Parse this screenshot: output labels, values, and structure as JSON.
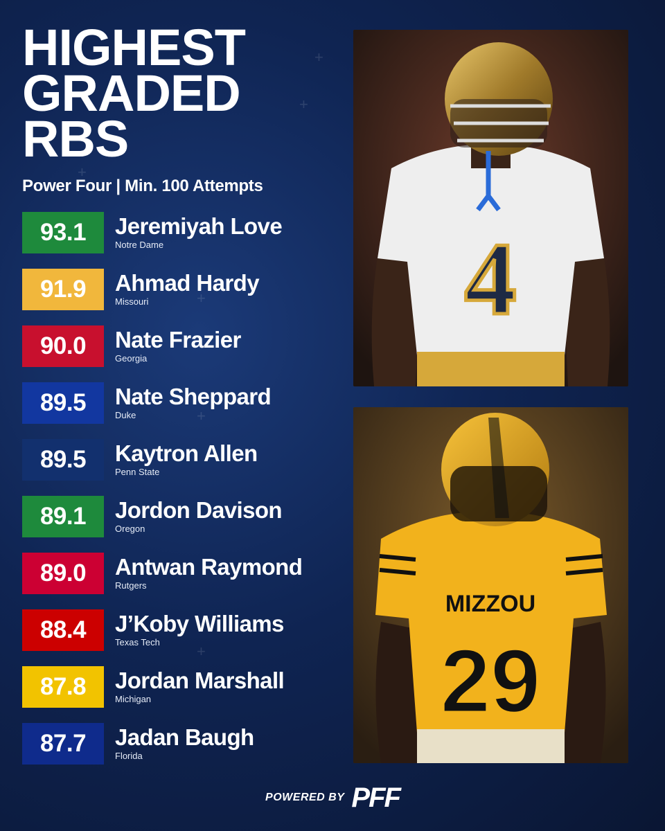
{
  "header": {
    "title_lines": [
      "HIGHEST",
      "GRADED",
      "RBS"
    ],
    "subtitle": "Power Four | Min. 100 Attempts"
  },
  "players": [
    {
      "grade": "93.1",
      "name": "Jeremiyah Love",
      "school": "Notre Dame",
      "color": "#1e8a3c"
    },
    {
      "grade": "91.9",
      "name": "Ahmad Hardy",
      "school": "Missouri",
      "color": "#f1b73c"
    },
    {
      "grade": "90.0",
      "name": "Nate Frazier",
      "school": "Georgia",
      "color": "#c8102e"
    },
    {
      "grade": "89.5",
      "name": "Nate Sheppard",
      "school": "Duke",
      "color": "#1237a0"
    },
    {
      "grade": "89.5",
      "name": "Kaytron Allen",
      "school": "Penn State",
      "color": "#12306e"
    },
    {
      "grade": "89.1",
      "name": "Jordon Davison",
      "school": "Oregon",
      "color": "#1e8a3c"
    },
    {
      "grade": "89.0",
      "name": "Antwan Raymond",
      "school": "Rutgers",
      "color": "#cc0033"
    },
    {
      "grade": "88.4",
      "name": "J’Koby Williams",
      "school": "Texas Tech",
      "color": "#cc0000"
    },
    {
      "grade": "87.8",
      "name": "Jordan Marshall",
      "school": "Michigan",
      "color": "#f2c300"
    },
    {
      "grade": "87.7",
      "name": "Jadan Baugh",
      "school": "Florida",
      "color": "#0f2b8c"
    }
  ],
  "photos": {
    "top": {
      "jersey_number": "4",
      "description_icon": "player-photo-icon"
    },
    "bottom": {
      "jersey_number": "29",
      "jersey_text": "MIZZOU",
      "description_icon": "player-photo-icon"
    }
  },
  "footer": {
    "powered_label": "POWERED BY",
    "logo_text": "PFF"
  }
}
